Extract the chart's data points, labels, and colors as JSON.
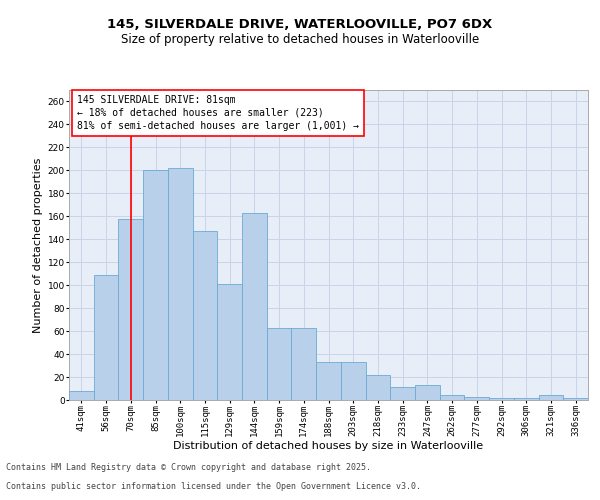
{
  "title_line1": "145, SILVERDALE DRIVE, WATERLOOVILLE, PO7 6DX",
  "title_line2": "Size of property relative to detached houses in Waterlooville",
  "xlabel": "Distribution of detached houses by size in Waterlooville",
  "ylabel": "Number of detached properties",
  "categories": [
    "41sqm",
    "56sqm",
    "70sqm",
    "85sqm",
    "100sqm",
    "115sqm",
    "129sqm",
    "144sqm",
    "159sqm",
    "174sqm",
    "188sqm",
    "203sqm",
    "218sqm",
    "233sqm",
    "247sqm",
    "262sqm",
    "277sqm",
    "292sqm",
    "306sqm",
    "321sqm",
    "336sqm"
  ],
  "values": [
    8,
    109,
    158,
    200,
    202,
    147,
    101,
    163,
    63,
    63,
    33,
    33,
    22,
    11,
    13,
    4,
    3,
    2,
    2,
    4,
    2
  ],
  "bar_color": "#b8d0ea",
  "bar_edge_color": "#6aaad4",
  "vline_x": 2.0,
  "vline_color": "red",
  "annotation_text": "145 SILVERDALE DRIVE: 81sqm\n← 18% of detached houses are smaller (223)\n81% of semi-detached houses are larger (1,001) →",
  "annotation_box_color": "red",
  "ylim": [
    0,
    270
  ],
  "yticks": [
    0,
    20,
    40,
    60,
    80,
    100,
    120,
    140,
    160,
    180,
    200,
    220,
    240,
    260
  ],
  "grid_color": "#c8d4e8",
  "bg_color": "#e8eef8",
  "footer_line1": "Contains HM Land Registry data © Crown copyright and database right 2025.",
  "footer_line2": "Contains public sector information licensed under the Open Government Licence v3.0.",
  "title_fontsize": 9.5,
  "subtitle_fontsize": 8.5,
  "ylabel_fontsize": 8,
  "xlabel_fontsize": 8,
  "tick_fontsize": 6.5,
  "annotation_fontsize": 7,
  "footer_fontsize": 6
}
